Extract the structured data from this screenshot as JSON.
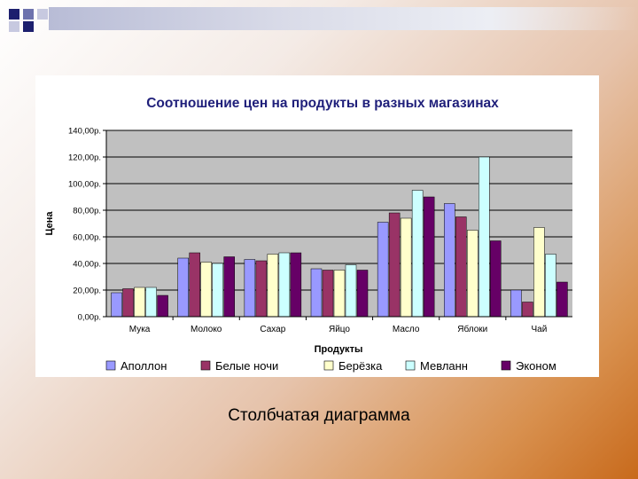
{
  "slide": {
    "caption": "Столбчатая диаграмма"
  },
  "colors": {
    "decor_dark": "#1c1f6e",
    "decor_mid": "#6d72ad",
    "decor_light": "#c7c9e0"
  },
  "chart_data": {
    "type": "bar",
    "title": "Соотношение цен на продукты в разных магазинах",
    "xlabel": "Продукты",
    "ylabel": "Цена",
    "ylim": [
      0,
      140
    ],
    "yticks": [
      "0,00р.",
      "20,00р.",
      "40,00р.",
      "60,00р.",
      "80,00р.",
      "100,00р.",
      "120,00р.",
      "140,00р."
    ],
    "grid": true,
    "legend_position": "bottom",
    "categories": [
      "Мука",
      "Молоко",
      "Сахар",
      "Яйцо",
      "Масло",
      "Яблоки",
      "Чай"
    ],
    "series": [
      {
        "name": "Аполлон",
        "color": "#9999ff",
        "values": [
          18,
          44,
          43,
          36,
          71,
          85,
          20
        ]
      },
      {
        "name": "Белые ночи",
        "color": "#993366",
        "values": [
          21,
          48,
          42,
          35,
          78,
          75,
          11
        ]
      },
      {
        "name": "Берёзка",
        "color": "#ffffcc",
        "values": [
          22,
          41,
          47,
          35,
          74,
          65,
          67
        ]
      },
      {
        "name": "Мевланн",
        "color": "#ccffff",
        "values": [
          22,
          40,
          48,
          39,
          95,
          120,
          47
        ]
      },
      {
        "name": "Эконом",
        "color": "#660066",
        "values": [
          16,
          45,
          48,
          35,
          90,
          57,
          26
        ]
      }
    ]
  }
}
